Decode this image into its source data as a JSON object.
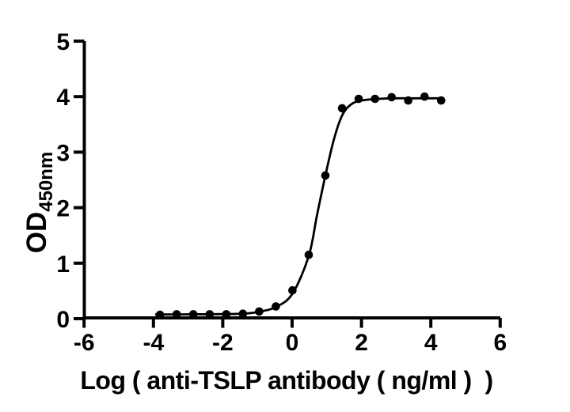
{
  "chart_data": {
    "type": "scatter",
    "title": "",
    "xlabel": "Log ( anti-TSLP antibody ( ng/ml )  )",
    "ylabel_main": "OD",
    "ylabel_sub": "450nm",
    "legend": "none",
    "grid": false,
    "x_axis": {
      "min": -6,
      "max": 6,
      "ticks": [
        -6,
        -4,
        -2,
        0,
        2,
        4,
        6
      ]
    },
    "y_axis": {
      "min": 0,
      "max": 5,
      "ticks": [
        0,
        1,
        2,
        3,
        4,
        5
      ]
    },
    "points": [
      {
        "x": -3.81,
        "y": 0.07
      },
      {
        "x": -3.33,
        "y": 0.08
      },
      {
        "x": -2.85,
        "y": 0.08
      },
      {
        "x": -2.38,
        "y": 0.08
      },
      {
        "x": -1.9,
        "y": 0.08
      },
      {
        "x": -1.42,
        "y": 0.09
      },
      {
        "x": -0.95,
        "y": 0.13
      },
      {
        "x": -0.47,
        "y": 0.22
      },
      {
        "x": 0.01,
        "y": 0.51
      },
      {
        "x": 0.48,
        "y": 1.15
      },
      {
        "x": 0.96,
        "y": 2.58
      },
      {
        "x": 1.44,
        "y": 3.79
      },
      {
        "x": 1.92,
        "y": 3.96
      },
      {
        "x": 2.39,
        "y": 3.96
      },
      {
        "x": 2.87,
        "y": 3.99
      },
      {
        "x": 3.35,
        "y": 3.93
      },
      {
        "x": 3.82,
        "y": 4.0
      },
      {
        "x": 4.3,
        "y": 3.93
      }
    ],
    "fit_curve": [
      {
        "x": -3.95,
        "y": 0.075
      },
      {
        "x": -3.0,
        "y": 0.078
      },
      {
        "x": -2.0,
        "y": 0.082
      },
      {
        "x": -1.42,
        "y": 0.09
      },
      {
        "x": -0.95,
        "y": 0.125
      },
      {
        "x": -0.47,
        "y": 0.21
      },
      {
        "x": 0.01,
        "y": 0.45
      },
      {
        "x": 0.48,
        "y": 1.13
      },
      {
        "x": 0.72,
        "y": 1.87
      },
      {
        "x": 0.96,
        "y": 2.58
      },
      {
        "x": 1.2,
        "y": 3.22
      },
      {
        "x": 1.44,
        "y": 3.66
      },
      {
        "x": 1.7,
        "y": 3.86
      },
      {
        "x": 2.0,
        "y": 3.93
      },
      {
        "x": 2.5,
        "y": 3.96
      },
      {
        "x": 3.0,
        "y": 3.97
      },
      {
        "x": 3.5,
        "y": 3.97
      },
      {
        "x": 4.0,
        "y": 3.97
      },
      {
        "x": 4.38,
        "y": 3.97
      }
    ],
    "colors": {
      "axis": "#000000",
      "marker": "#000000",
      "curve": "#000000",
      "text": "#000000",
      "background": "#ffffff"
    },
    "marker_radius_px": 5.3
  }
}
